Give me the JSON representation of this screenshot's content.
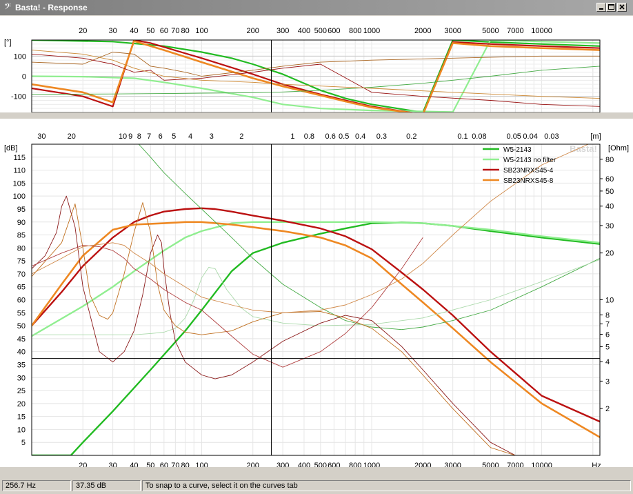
{
  "window": {
    "title": "Basta! - Response",
    "app_icon": "bass-clef-icon",
    "controls": [
      "minimize-icon",
      "maximize-icon",
      "close-icon"
    ]
  },
  "chart_data": [
    {
      "type": "line",
      "scale": "log-x",
      "ylabel": "[°]",
      "ylim": [
        -180,
        180
      ],
      "xlim": [
        10,
        22000
      ],
      "x_ticks": [
        20,
        30,
        40,
        50,
        60,
        70,
        80,
        100,
        200,
        300,
        400,
        500,
        600,
        800,
        1000,
        2000,
        3000,
        5000,
        7000,
        10000
      ],
      "y_ticks": [
        100,
        0,
        -100
      ],
      "cursor_x": 256.7,
      "grid": true,
      "series": [
        {
          "name": "W5-2143",
          "color": "#22bb22",
          "width": 2.2,
          "x": [
            10,
            30,
            60,
            100,
            150,
            200,
            300,
            500,
            700,
            1000,
            2000,
            3000,
            5000,
            10000,
            22000
          ],
          "y": [
            180,
            172,
            150,
            120,
            90,
            60,
            10,
            -70,
            -110,
            -140,
            -180,
            180,
            170,
            160,
            150
          ]
        },
        {
          "name": "W5-2143 no filter",
          "color": "#90ee90",
          "width": 2.2,
          "x": [
            10,
            20,
            40,
            60,
            100,
            200,
            300,
            500,
            1000,
            2000,
            3000,
            5000,
            10000,
            22000
          ],
          "y": [
            0,
            -2,
            -10,
            -30,
            -60,
            -105,
            -140,
            -160,
            -170,
            -175,
            -178,
            180,
            172,
            165
          ]
        },
        {
          "name": "SB23NRXS45-4",
          "color": "#bb1111",
          "width": 2.2,
          "x": [
            10,
            20,
            30,
            40,
            50,
            60,
            100,
            200,
            300,
            500,
            700,
            1000,
            2000,
            3000,
            5000,
            10000,
            22000
          ],
          "y": [
            -60,
            -100,
            -150,
            180,
            165,
            145,
            90,
            10,
            -40,
            -90,
            -120,
            -150,
            -190,
            170,
            160,
            150,
            140
          ]
        },
        {
          "name": "SB23NRXS45-8",
          "color": "#ee8822",
          "width": 2.6,
          "x": [
            10,
            20,
            30,
            40,
            50,
            60,
            100,
            200,
            300,
            500,
            700,
            1000,
            2000,
            3000,
            5000,
            10000,
            22000
          ],
          "y": [
            -40,
            -80,
            -130,
            175,
            150,
            130,
            70,
            -10,
            -50,
            -95,
            -125,
            -155,
            -190,
            165,
            150,
            140,
            130
          ]
        },
        {
          "name": "",
          "color": "#44aa44",
          "width": 0.9,
          "x": [
            10,
            30,
            60,
            100,
            200,
            300,
            500,
            1000,
            2000,
            3000,
            5000,
            10000,
            22000
          ],
          "y": [
            -90,
            -88,
            -86,
            -84,
            -82,
            -78,
            -70,
            -55,
            -35,
            -20,
            0,
            30,
            50
          ]
        },
        {
          "name": "",
          "color": "#aa6622",
          "width": 0.9,
          "x": [
            10,
            20,
            30,
            40,
            50,
            60,
            80,
            100,
            200,
            300,
            500,
            1000,
            3000,
            10000,
            22000
          ],
          "y": [
            70,
            60,
            120,
            110,
            50,
            40,
            20,
            0,
            30,
            50,
            70,
            80,
            90,
            100,
            100
          ]
        },
        {
          "name": "",
          "color": "#991111",
          "width": 0.9,
          "x": [
            10,
            20,
            30,
            40,
            50,
            60,
            100,
            200,
            300,
            500,
            1000,
            2000,
            5000,
            10000,
            22000
          ],
          "y": [
            110,
            90,
            60,
            20,
            30,
            -20,
            -10,
            20,
            40,
            60,
            -80,
            -100,
            -120,
            -140,
            -150
          ]
        },
        {
          "name": "",
          "color": "#cc8833",
          "width": 0.9,
          "x": [
            10,
            20,
            30,
            40,
            60,
            100,
            200,
            300,
            1000,
            3000,
            10000,
            22000
          ],
          "y": [
            130,
            110,
            80,
            40,
            0,
            -20,
            -30,
            -40,
            -60,
            -80,
            -100,
            -110
          ]
        }
      ]
    },
    {
      "type": "line",
      "scale": "log-x",
      "xlabel": "Hz",
      "ylabel": "[dB]",
      "y2label": "[Ohm]",
      "top_axis_label": "[m]",
      "ylim": [
        0,
        120
      ],
      "xlim": [
        10,
        22000
      ],
      "x_ticks": [
        20,
        30,
        40,
        50,
        60,
        70,
        80,
        100,
        200,
        300,
        400,
        500,
        600,
        800,
        1000,
        2000,
        3000,
        5000,
        7000,
        10000
      ],
      "y_ticks": [
        115,
        110,
        105,
        100,
        95,
        90,
        85,
        80,
        75,
        70,
        65,
        60,
        55,
        50,
        45,
        40,
        35,
        30,
        25,
        20,
        15,
        10,
        5
      ],
      "y2_ticks": [
        80,
        60,
        50,
        40,
        30,
        20,
        10,
        8,
        7,
        6,
        5,
        4,
        3,
        2
      ],
      "y2lim": [
        1,
        100
      ],
      "top_ticks": [
        30,
        20,
        10,
        9,
        8,
        7,
        6,
        5,
        4,
        3,
        2,
        1,
        0.8,
        0.6,
        0.5,
        0.4,
        0.3,
        0.2,
        0.1,
        0.08,
        0.05,
        0.04,
        0.03
      ],
      "cursor_x": 256.7,
      "cursor_y": 37.35,
      "grid": true,
      "legend": "top-right",
      "watermark": "Basta!",
      "series": [
        {
          "name": "W5-2143",
          "color": "#22bb22",
          "width": 2.4,
          "x": [
            10,
            17,
            20,
            30,
            50,
            80,
            100,
            150,
            200,
            300,
            500,
            700,
            1000,
            1500,
            2000,
            3000,
            5000,
            10000,
            22000
          ],
          "y": [
            0,
            0,
            5,
            17,
            33,
            48,
            56,
            71,
            78,
            82,
            85.5,
            87.5,
            89.5,
            89.8,
            89.5,
            88.5,
            86.5,
            84,
            81.5
          ]
        },
        {
          "name": "W5-2143 no filter",
          "color": "#90ee90",
          "width": 2.4,
          "x": [
            10,
            20,
            30,
            40,
            60,
            80,
            100,
            150,
            200,
            300,
            500,
            1000,
            2000,
            3000,
            5000,
            10000,
            22000
          ],
          "y": [
            46,
            57.5,
            65,
            71,
            79,
            84,
            86.5,
            89.5,
            90,
            90,
            90,
            90,
            89.5,
            88.5,
            87,
            84.5,
            82
          ]
        },
        {
          "name": "SB23NRXS45-4",
          "color": "#bb1111",
          "width": 2.4,
          "x": [
            10,
            15,
            20,
            30,
            40,
            50,
            60,
            80,
            100,
            120,
            150,
            200,
            300,
            500,
            700,
            1000,
            1500,
            2000,
            3000,
            5000,
            10000,
            22000
          ],
          "y": [
            50,
            63,
            73,
            84,
            90,
            92.5,
            94,
            95,
            95.3,
            95,
            94,
            92.5,
            90.5,
            87.5,
            84.5,
            79.5,
            70.5,
            64,
            54,
            40,
            23,
            13
          ]
        },
        {
          "name": "SB23NRXS45-8",
          "color": "#ee8822",
          "width": 2.6,
          "x": [
            10,
            15,
            20,
            30,
            40,
            60,
            80,
            100,
            150,
            200,
            300,
            500,
            700,
            1000,
            1500,
            2000,
            3000,
            5000,
            10000,
            22000
          ],
          "y": [
            50,
            66,
            77,
            87,
            89,
            89.5,
            90,
            90,
            89,
            88,
            86.5,
            84,
            81,
            76,
            66,
            59,
            49,
            36,
            20,
            7
          ]
        },
        {
          "name": "",
          "color": "#44aa44",
          "width": 0.9,
          "x": [
            40,
            50,
            60,
            80,
            100,
            150,
            200,
            300,
            500,
            700,
            1000,
            1500,
            2000,
            3000,
            5000,
            10000,
            22000
          ],
          "y": [
            122,
            115,
            109,
            101,
            95,
            84,
            76,
            66,
            57,
            52,
            49.5,
            48.5,
            49.5,
            52,
            56,
            65,
            76
          ]
        },
        {
          "name": "",
          "color": "#aad9aa",
          "width": 0.9,
          "x": [
            10,
            20,
            30,
            40,
            50,
            60,
            70,
            80,
            90,
            100,
            110,
            120,
            140,
            170,
            200,
            300,
            500,
            1000,
            2000,
            5000,
            10000,
            22000
          ],
          "y": [
            46.5,
            46.5,
            46.5,
            46.5,
            47,
            47.5,
            49,
            53,
            60,
            68.5,
            72.5,
            72,
            64,
            57,
            53.5,
            51,
            50,
            50.5,
            53,
            60,
            67,
            75.5
          ]
        },
        {
          "name": "",
          "color": "#8b1a1a",
          "width": 0.9,
          "x": [
            10,
            12,
            14,
            15,
            16,
            18,
            20,
            25,
            30,
            35,
            40,
            45,
            50,
            55,
            58,
            60,
            65,
            70,
            80,
            100,
            120,
            150,
            200,
            300,
            500,
            700,
            1000,
            1500,
            2000,
            3000,
            5000,
            7000
          ],
          "y": [
            72,
            77,
            86,
            96,
            100,
            88,
            65,
            40,
            36,
            40,
            48,
            62,
            78,
            85,
            82,
            72,
            55,
            44,
            36,
            31,
            29.5,
            31,
            36,
            44,
            51,
            54,
            52,
            42,
            33,
            20,
            5,
            0
          ]
        },
        {
          "name": "",
          "color": "#c07020",
          "width": 0.9,
          "x": [
            10,
            15,
            18,
            20,
            22,
            25,
            28,
            30,
            35,
            40,
            45,
            50,
            55,
            60,
            70,
            80,
            100,
            150,
            200,
            300,
            500,
            700,
            1000,
            1500,
            2000,
            3000,
            5000,
            7000
          ],
          "y": [
            69,
            82,
            97,
            80,
            62,
            54,
            52.5,
            55,
            70,
            86,
            97.5,
            86,
            66,
            56,
            50,
            47.5,
            46.5,
            48,
            51.5,
            55,
            55.5,
            53,
            49,
            40,
            31,
            18,
            3,
            0
          ]
        },
        {
          "name": "",
          "color": "#b04040",
          "width": 0.9,
          "x": [
            10,
            15,
            20,
            25,
            30,
            35,
            40,
            50,
            60,
            80,
            100,
            150,
            200,
            300,
            500,
            700,
            1000,
            1500,
            2000
          ],
          "y": [
            73,
            78,
            81,
            80.5,
            79,
            76,
            72,
            68,
            64,
            59,
            56,
            46,
            39,
            34,
            40,
            47,
            57,
            72,
            84
          ]
        },
        {
          "name": "",
          "color": "#d08848",
          "width": 0.9,
          "x": [
            10,
            15,
            20,
            30,
            35,
            40,
            50,
            60,
            80,
            100,
            150,
            200,
            300,
            500,
            700,
            1000,
            1500,
            2000,
            3000,
            5000,
            10000,
            22000
          ],
          "y": [
            70,
            76,
            80.5,
            82,
            81,
            78,
            74,
            70,
            65,
            61,
            58,
            56,
            55,
            56,
            58,
            62,
            68,
            74,
            85,
            98,
            112,
            122
          ]
        }
      ]
    }
  ],
  "status": {
    "frequency": "256.7 Hz",
    "level": "37.35 dB",
    "hint": "To snap to a curve, select it on the curves tab"
  }
}
